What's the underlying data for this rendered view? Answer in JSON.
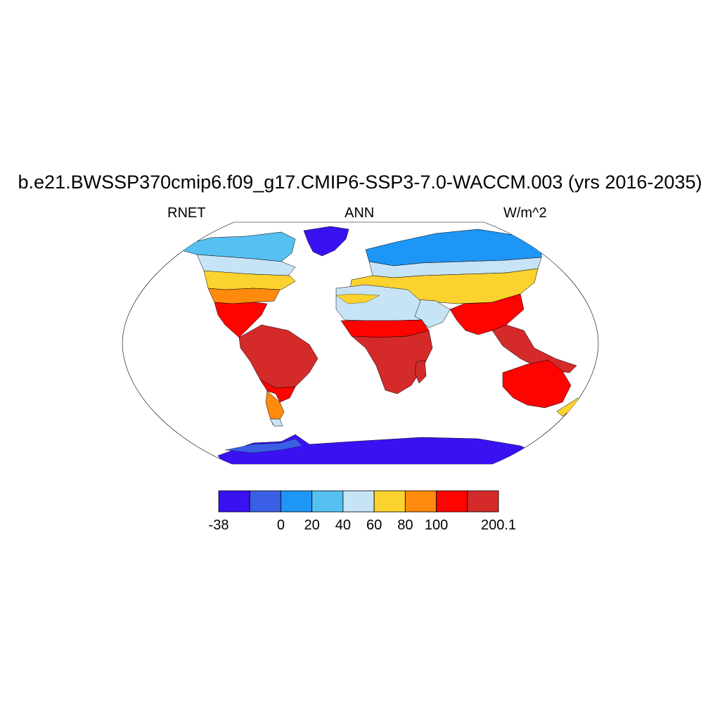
{
  "title": "b.e21.BWSSP370cmip6.f09_g17.CMIP6-SSP3-7.0-WACCM.003 (yrs 2016-2035)",
  "left_label": "RNET",
  "center_label": "ANN",
  "right_label": "W/m^2",
  "colorbar": {
    "bins": [
      {
        "color": "#3a12f2"
      },
      {
        "color": "#3b5ee6"
      },
      {
        "color": "#1d96f5"
      },
      {
        "color": "#55c0f1"
      },
      {
        "color": "#c6e4f6"
      },
      {
        "color": "#fcd22e"
      },
      {
        "color": "#ff8a0c"
      },
      {
        "color": "#fd0400"
      },
      {
        "color": "#d42a2a"
      }
    ],
    "tick_labels": [
      "-38",
      "0",
      "20",
      "40",
      "60",
      "80",
      "100",
      "200.1"
    ]
  }
}
